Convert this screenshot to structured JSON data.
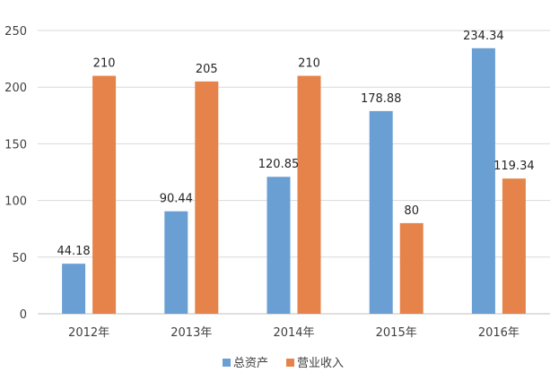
{
  "chart_data": {
    "type": "bar",
    "categories": [
      "2012年",
      "2013年",
      "2014年",
      "2015年",
      "2016年"
    ],
    "series": [
      {
        "name": "总资产",
        "values": [
          44.18,
          90.44,
          120.85,
          178.88,
          234.34
        ],
        "labels": [
          "44.18",
          "90.44",
          "120.85",
          "178.88",
          "234.34"
        ],
        "color": "#6a9fd4"
      },
      {
        "name": "营业收入",
        "values": [
          210,
          205,
          210,
          80,
          119.34
        ],
        "labels": [
          "210",
          "205",
          "210",
          "80",
          "119.34"
        ],
        "color": "#e5834a"
      }
    ],
    "ylim": [
      0,
      250
    ],
    "yticks": [
      0,
      50,
      100,
      150,
      200,
      250
    ],
    "ytick_labels": [
      "0",
      "50",
      "100",
      "150",
      "200",
      "250"
    ],
    "grid": true,
    "legend_position": "bottom-center",
    "grid_color": "#d9d9d9",
    "axis_color": "#bfbfbf"
  }
}
